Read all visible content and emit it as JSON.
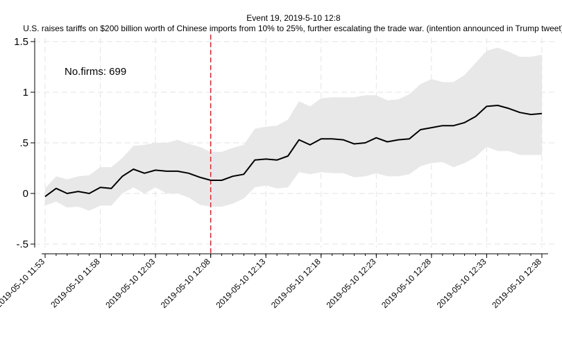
{
  "chart_data": {
    "type": "line",
    "title": "Event 19, 2019-5-10 12:8",
    "subtitle": "U.S. raises tariffs on $200 billion worth of Chinese imports from 10% to 25%, further escalating the trade war. (intention announced in Trump tweet)",
    "annotation": "No.firms: 699",
    "xlabel": "",
    "ylabel": "",
    "ylim": [
      -0.5,
      1.5
    ],
    "y_ticks": [
      {
        "value": -0.5,
        "label": "-.5"
      },
      {
        "value": 0,
        "label": "0"
      },
      {
        "value": 0.5,
        "label": ".5"
      },
      {
        "value": 1,
        "label": "1"
      },
      {
        "value": 1.5,
        "label": "1.5"
      }
    ],
    "x_ticks": [
      "2019-05-10 11:53",
      "2019-05-10 11:58",
      "2019-05-10 12:03",
      "2019-05-10 12:08",
      "2019-05-10 12:13",
      "2019-05-10 12:18",
      "2019-05-10 12:23",
      "2019-05-10 12:28",
      "2019-05-10 12:33",
      "2019-05-10 12:38"
    ],
    "event_time": "2019-05-10 12:08",
    "grid": true,
    "colors": {
      "line": "#000000",
      "band": "#e8e8e8",
      "event_line": "#d62728",
      "grid": "#e3e3e3"
    },
    "series": [
      {
        "role": "estimate",
        "values": [
          -0.03,
          0.05,
          0.0,
          0.02,
          0.0,
          0.06,
          0.05,
          0.17,
          0.24,
          0.2,
          0.23,
          0.22,
          0.22,
          0.2,
          0.16,
          0.13,
          0.13,
          0.17,
          0.19,
          0.33,
          0.34,
          0.33,
          0.37,
          0.53,
          0.48,
          0.54,
          0.54,
          0.53,
          0.49,
          0.5,
          0.55,
          0.51,
          0.53,
          0.54,
          0.63,
          0.65,
          0.67,
          0.67,
          0.7,
          0.76,
          0.86,
          0.87,
          0.84,
          0.8,
          0.78,
          0.79
        ]
      },
      {
        "role": "upper",
        "values": [
          0.05,
          0.17,
          0.14,
          0.17,
          0.18,
          0.26,
          0.26,
          0.35,
          0.47,
          0.48,
          0.5,
          0.5,
          0.53,
          0.49,
          0.46,
          0.41,
          0.41,
          0.45,
          0.48,
          0.64,
          0.66,
          0.67,
          0.73,
          0.91,
          0.86,
          0.94,
          0.95,
          0.95,
          0.95,
          0.97,
          0.97,
          0.92,
          0.93,
          0.98,
          1.08,
          1.13,
          1.1,
          1.1,
          1.17,
          1.29,
          1.41,
          1.44,
          1.4,
          1.35,
          1.35,
          1.37
        ]
      },
      {
        "role": "lower",
        "values": [
          -0.12,
          -0.08,
          -0.14,
          -0.13,
          -0.17,
          -0.12,
          -0.12,
          0.0,
          0.06,
          0.0,
          0.06,
          0.0,
          0.0,
          -0.04,
          -0.11,
          -0.13,
          -0.13,
          -0.1,
          -0.05,
          0.06,
          0.08,
          0.05,
          0.06,
          0.21,
          0.19,
          0.21,
          0.2,
          0.2,
          0.16,
          0.17,
          0.2,
          0.17,
          0.17,
          0.19,
          0.27,
          0.3,
          0.31,
          0.26,
          0.3,
          0.36,
          0.46,
          0.42,
          0.42,
          0.38,
          0.38,
          0.38
        ]
      }
    ]
  }
}
